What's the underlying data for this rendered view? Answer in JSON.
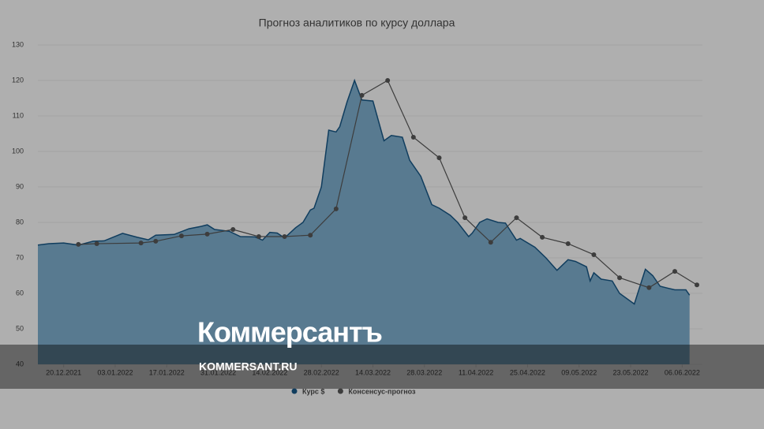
{
  "chart_data": {
    "type": "area-line",
    "title": "Прогноз аналитиков по курсу доллара",
    "xlim": [
      "13.12.2021",
      "10.06.2022"
    ],
    "xticks": [
      "20.12.2021",
      "03.01.2022",
      "17.01.2022",
      "31.01.2022",
      "14.02.2022",
      "28.02.2022",
      "14.03.2022",
      "28.03.2022",
      "11.04.2022",
      "25.04.2022",
      "09.05.2022",
      "23.05.2022",
      "06.06.2022"
    ],
    "ylim": [
      40,
      130
    ],
    "yticks": [
      40,
      50,
      60,
      70,
      80,
      90,
      100,
      110,
      120,
      130
    ],
    "grid": true,
    "legend": "bottom",
    "series": [
      {
        "name": "Курс $",
        "kind": "area",
        "color": "#587a90",
        "line_color": "#103d5e",
        "x": [
          "13.12.2021",
          "16.12.2021",
          "20.12.2021",
          "24.12.2021",
          "28.12.2021",
          "31.12.2021",
          "05.01.2022",
          "09.01.2022",
          "12.01.2022",
          "14.01.2022",
          "19.01.2022",
          "23.01.2022",
          "26.01.2022",
          "28.01.2022",
          "30.01.2022",
          "03.02.2022",
          "06.02.2022",
          "10.02.2022",
          "12.02.2022",
          "14.02.2022",
          "16.02.2022",
          "18.02.2022",
          "21.02.2022",
          "23.02.2022",
          "25.02.2022",
          "26.02.2022",
          "28.02.2022",
          "02.03.2022",
          "04.03.2022",
          "05.03.2022",
          "07.03.2022",
          "09.03.2022",
          "11.03.2022",
          "14.03.2022",
          "17.03.2022",
          "19.03.2022",
          "22.03.2022",
          "24.03.2022",
          "27.03.2022",
          "30.03.2022",
          "01.04.2022",
          "04.04.2022",
          "06.04.2022",
          "09.04.2022",
          "10.04.2022",
          "12.04.2022",
          "14.04.2022",
          "17.04.2022",
          "19.04.2022",
          "22.04.2022",
          "23.04.2022",
          "27.04.2022",
          "30.04.2022",
          "03.05.2022",
          "06.05.2022",
          "08.05.2022",
          "11.05.2022",
          "12.05.2022",
          "13.05.2022",
          "15.05.2022",
          "18.05.2022",
          "20.05.2022",
          "24.05.2022",
          "27.05.2022",
          "29.05.2022",
          "31.05.2022",
          "02.06.2022",
          "04.06.2022",
          "07.06.2022",
          "08.06.2022"
        ],
        "values": [
          73.6,
          74.0,
          74.2,
          73.6,
          74.7,
          74.8,
          76.9,
          75.8,
          75.1,
          76.4,
          76.6,
          78.2,
          78.8,
          79.3,
          78.0,
          77.5,
          76.0,
          75.9,
          75.0,
          77.2,
          77.0,
          75.6,
          78.5,
          80.0,
          83.5,
          84.0,
          90.0,
          106.0,
          105.5,
          107.0,
          114.0,
          120.0,
          114.5,
          114.2,
          103.0,
          104.5,
          104.0,
          97.5,
          93.0,
          85.0,
          84.0,
          82.0,
          80.0,
          76.0,
          77.0,
          80.0,
          81.0,
          80.0,
          79.8,
          75.0,
          75.5,
          73.0,
          70.0,
          66.5,
          69.5,
          69.0,
          67.5,
          63.5,
          65.8,
          64.0,
          63.5,
          60.0,
          57.0,
          66.8,
          65.0,
          62.0,
          61.5,
          61.0,
          61.0,
          59.5
        ]
      },
      {
        "name": "Консенсус-прогноз",
        "kind": "line",
        "color": "#3d3d3d",
        "x": [
          "24.12.2021",
          "29.12.2021",
          "10.01.2022",
          "14.01.2022",
          "21.01.2022",
          "28.01.2022",
          "04.02.2022",
          "11.02.2022",
          "18.02.2022",
          "25.02.2022",
          "04.03.2022",
          "11.03.2022",
          "18.03.2022",
          "25.03.2022",
          "01.04.2022",
          "08.04.2022",
          "15.04.2022",
          "22.04.2022",
          "29.04.2022",
          "06.05.2022",
          "13.05.2022",
          "20.05.2022",
          "28.05.2022",
          "04.06.2022",
          "10.06.2022"
        ],
        "values": [
          73.8,
          74.0,
          74.2,
          74.7,
          76.2,
          76.7,
          78.0,
          76.0,
          76.0,
          76.4,
          83.8,
          115.8,
          120.0,
          104.0,
          98.2,
          81.3,
          74.4,
          81.3,
          75.8,
          74.0,
          70.9,
          64.4,
          61.6,
          66.2,
          62.4
        ]
      }
    ]
  },
  "watermark": {
    "logo": "Коммерсантъ",
    "url": "KOMMERSANT.RU"
  }
}
